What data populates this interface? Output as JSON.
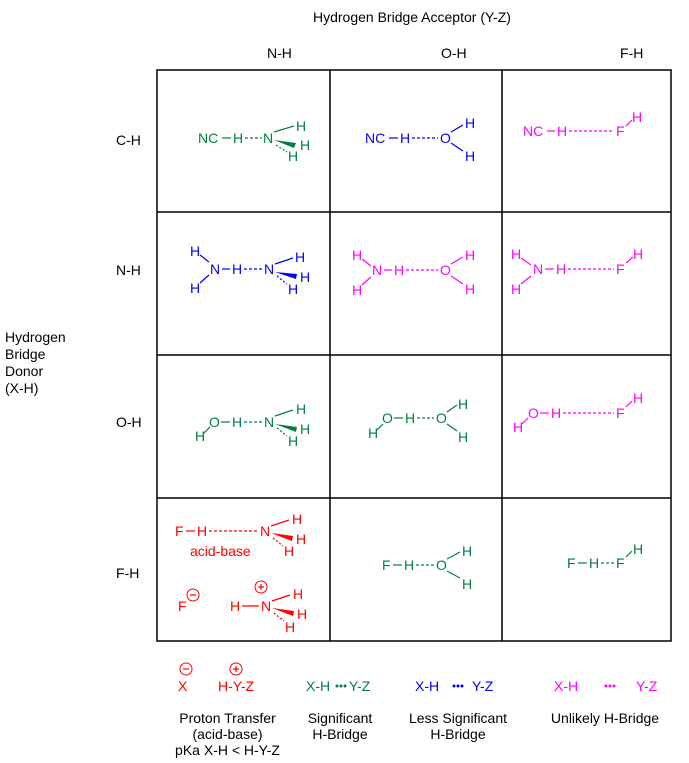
{
  "header": {
    "acceptor_title": "Hydrogen Bridge Acceptor (Y-Z)"
  },
  "columns": [
    "N-H",
    "O-H",
    "F-H"
  ],
  "rows": [
    "C-H",
    "N-H",
    "O-H",
    "F-H"
  ],
  "donor_title": [
    "Hydrogen",
    "Bridge",
    "Donor",
    "(X-H)"
  ],
  "colors": {
    "proton_transfer": "#ff0000",
    "significant": "#008040",
    "less_significant": "#0000ff",
    "unlikely": "#ff00ff"
  },
  "cells": {
    "r0c0": {
      "atoms": [
        "NC",
        "H",
        "N",
        "H",
        "H",
        "H"
      ],
      "category": "significant"
    },
    "r0c1": {
      "atoms": [
        "NC",
        "H",
        "O",
        "H",
        "H"
      ],
      "category": "less_significant"
    },
    "r0c2": {
      "atoms": [
        "NC",
        "H",
        "F",
        "H"
      ],
      "category": "unlikely"
    },
    "r1c0": {
      "atoms": [
        "H",
        "N",
        "H",
        "H",
        "N",
        "H",
        "H",
        "H"
      ],
      "category": "less_significant"
    },
    "r1c1": {
      "atoms": [
        "H",
        "N",
        "H",
        "H",
        "O",
        "H",
        "H"
      ],
      "category": "unlikely"
    },
    "r1c2": {
      "atoms": [
        "H",
        "N",
        "H",
        "H",
        "F",
        "H"
      ],
      "category": "unlikely"
    },
    "r2c0": {
      "atoms": [
        "H",
        "O",
        "H",
        "N",
        "H",
        "H",
        "H"
      ],
      "category": "significant"
    },
    "r2c1": {
      "atoms": [
        "H",
        "O",
        "H",
        "O",
        "H",
        "H"
      ],
      "category": "significant"
    },
    "r2c2": {
      "atoms": [
        "H",
        "O",
        "H",
        "F",
        "H"
      ],
      "category": "unlikely"
    },
    "r3c0": {
      "atoms": [
        "F",
        "H",
        "N",
        "H",
        "H",
        "H"
      ],
      "note": "acid-base",
      "ion_a": "F",
      "ion_b": [
        "H",
        "N",
        "H",
        "H",
        "H"
      ],
      "category": "proton_transfer"
    },
    "r3c1": {
      "atoms": [
        "F",
        "H",
        "O",
        "H",
        "H"
      ],
      "category": "significant"
    },
    "r3c2": {
      "atoms": [
        "F",
        "H",
        "F",
        "H"
      ],
      "category": "significant"
    }
  },
  "legend": [
    {
      "sample": [
        "X",
        "H-Y-Z"
      ],
      "caption": [
        "Proton Transfer",
        "(acid-base)",
        "pKa X-H < H-Y-Z"
      ],
      "category": "proton_transfer"
    },
    {
      "sample": [
        "X-H",
        "Y-Z"
      ],
      "caption": [
        "Significant",
        "H-Bridge"
      ],
      "category": "significant"
    },
    {
      "sample": [
        "X-H",
        "Y-Z"
      ],
      "caption": [
        "Less Significant",
        "H-Bridge"
      ],
      "category": "less_significant"
    },
    {
      "sample": [
        "X-H",
        "Y-Z"
      ],
      "caption": [
        "Unlikely H-Bridge"
      ],
      "category": "unlikely"
    }
  ]
}
